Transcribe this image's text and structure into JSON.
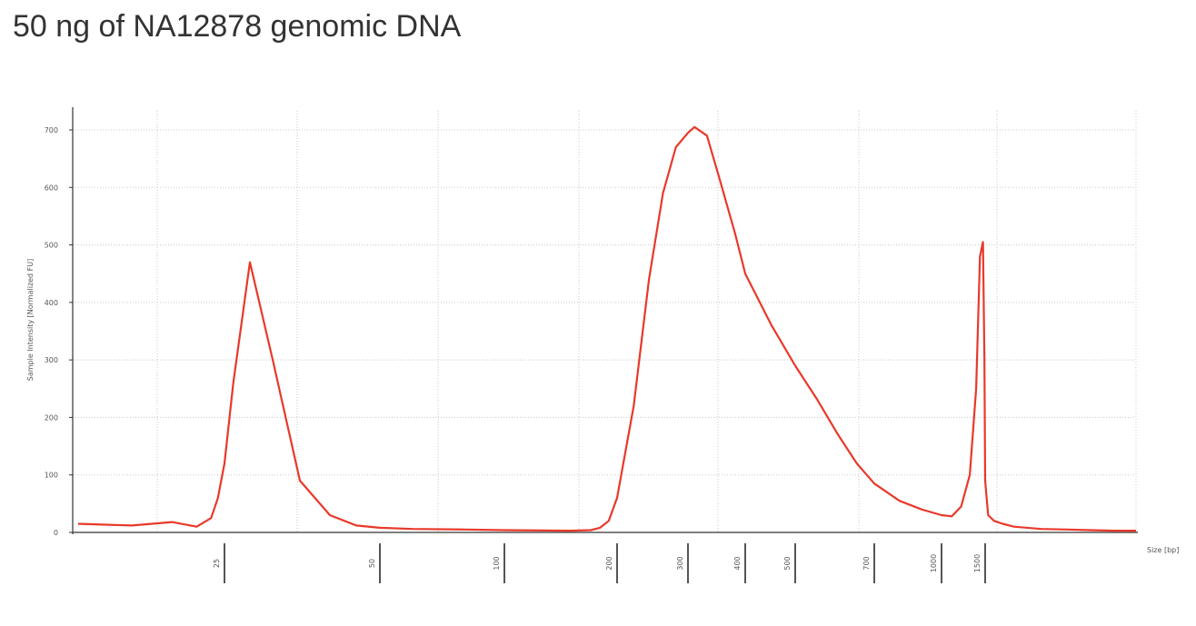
{
  "title": "50 ng of NA12878 genomic DNA",
  "chart_data": {
    "type": "line",
    "title": "50 ng of NA12878 genomic DNA",
    "ylabel": "Sample Intensity [Normalized FU]",
    "xlabel": "Size [bp]",
    "ylim": [
      0,
      750
    ],
    "yticks": [
      0,
      100,
      200,
      300,
      400,
      500,
      600,
      700
    ],
    "xticks": [
      "25",
      "50",
      "100",
      "200",
      "300",
      "400",
      "500",
      "700",
      "1000",
      "1500"
    ],
    "grid": true,
    "color": "#e8392a",
    "series": [
      {
        "x_bp": [
          10,
          14,
          18,
          21,
          23,
          24,
          25,
          26,
          28,
          31,
          35,
          40,
          45,
          50,
          60,
          80,
          100,
          150,
          170,
          180,
          190,
          200,
          220,
          240,
          260,
          280,
          300,
          310,
          330,
          350,
          380,
          400,
          450,
          500,
          550,
          600,
          650,
          700,
          800,
          900,
          1000,
          1100,
          1200,
          1300,
          1380,
          1430,
          1470,
          1490,
          1500,
          1510,
          1530,
          1560,
          1600,
          1700,
          1800,
          1900,
          2000,
          2100
        ],
        "values": [
          15,
          12,
          18,
          10,
          25,
          60,
          120,
          260,
          470,
          300,
          90,
          30,
          12,
          8,
          6,
          5,
          4,
          3,
          4,
          8,
          20,
          60,
          220,
          440,
          590,
          670,
          695,
          705,
          690,
          620,
          520,
          450,
          360,
          290,
          230,
          170,
          120,
          85,
          55,
          40,
          30,
          28,
          45,
          100,
          250,
          480,
          505,
          300,
          90,
          30,
          20,
          15,
          10,
          6,
          5,
          4,
          3,
          3
        ]
      }
    ]
  }
}
